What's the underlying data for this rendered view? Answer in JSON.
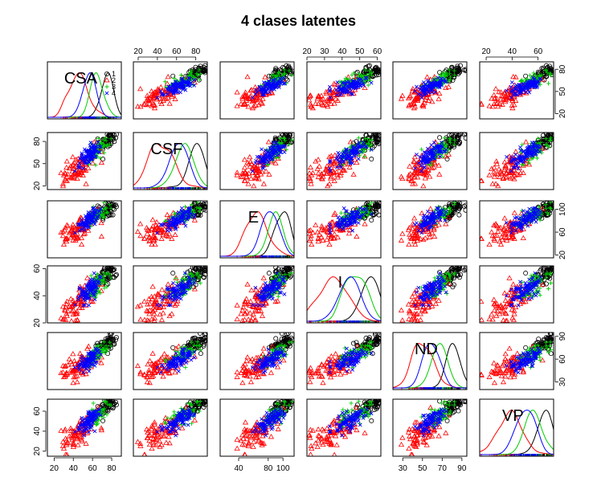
{
  "chart_data": {
    "type": "scatter",
    "subtype": "pairs-matrix",
    "title": "4 clases latentes",
    "variables": [
      "CSA",
      "CSF",
      "E",
      "I",
      "ND",
      "VP"
    ],
    "diagonal": "density",
    "axis_ranges": {
      "CSA": [
        13,
        90
      ],
      "CSF": [
        15,
        92
      ],
      "E": [
        15,
        115
      ],
      "I": [
        20,
        62
      ],
      "ND": [
        20,
        95
      ],
      "VP": [
        15,
        72
      ]
    },
    "ticks": {
      "CSA": [
        20,
        40,
        60,
        80
      ],
      "CSF": [
        20,
        50,
        80
      ],
      "E": [
        20,
        60,
        100
      ],
      "I": [
        20,
        40,
        60
      ],
      "ND": [
        30,
        60,
        90
      ],
      "VP": [
        20,
        40,
        60
      ]
    },
    "tick_labels": {
      "CSA": [
        "20",
        "40",
        "60",
        "80"
      ],
      "CSF_top": [
        "20",
        "40",
        "60",
        "80"
      ],
      "CSF_left": [
        "20",
        "50",
        "80"
      ],
      "E_bottom": [
        "40",
        "80",
        "100"
      ],
      "E_right": [
        "20",
        "60",
        "100"
      ],
      "I_top": [
        "20",
        "30",
        "40",
        "50",
        "60"
      ],
      "I_left": [
        "20",
        "40",
        "60"
      ],
      "ND_bottom": [
        "30",
        "50",
        "70",
        "90"
      ],
      "ND_right": [
        "30",
        "60",
        "90"
      ],
      "VP_top": [
        "20",
        "40",
        "60"
      ],
      "VP_left": [
        "20",
        "40",
        "60"
      ],
      "VP_right": [
        "20",
        "50",
        "80"
      ]
    },
    "legend": {
      "position": "top-right of first panel",
      "entries": [
        "1",
        "2",
        "3",
        "4"
      ]
    },
    "series": [
      {
        "name": "1",
        "color": "#000000",
        "marker": "circle",
        "means": [
          75,
          80,
          100,
          55,
          80,
          65
        ]
      },
      {
        "name": "2",
        "color": "#ff0000",
        "marker": "triangle",
        "means": [
          45,
          45,
          65,
          35,
          50,
          38
        ]
      },
      {
        "name": "3",
        "color": "#00cd00",
        "marker": "plus",
        "means": [
          65,
          68,
          90,
          48,
          68,
          57
        ]
      },
      {
        "name": "4",
        "color": "#0000ff",
        "marker": "cross",
        "means": [
          57,
          62,
          82,
          44,
          58,
          50
        ]
      }
    ]
  }
}
